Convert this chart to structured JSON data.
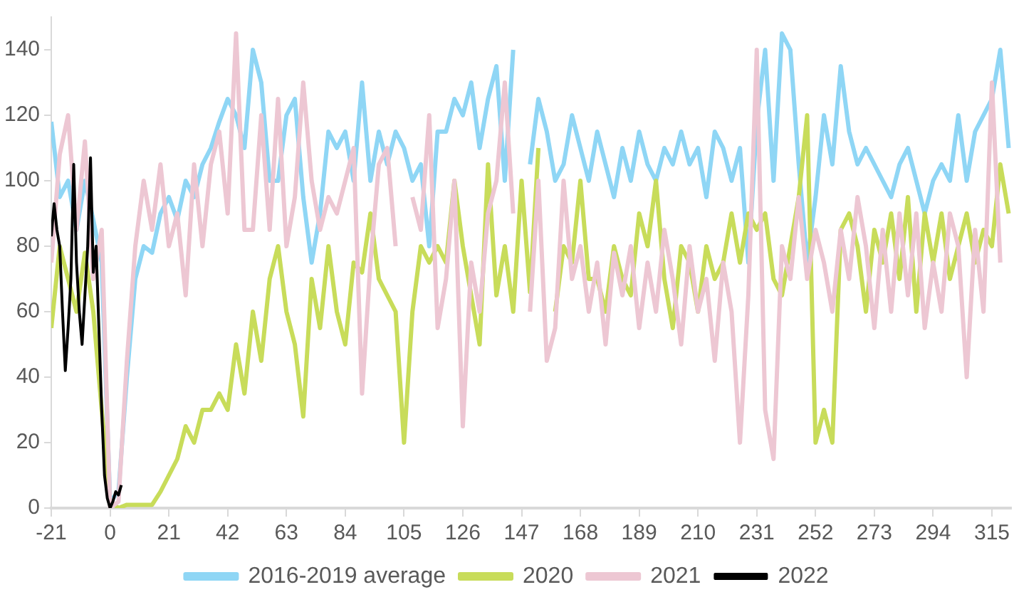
{
  "chart_data": {
    "type": "line",
    "x": [
      -21,
      -18,
      -15,
      -12,
      -9,
      -6,
      -3,
      0,
      3,
      6,
      9,
      12,
      15,
      18,
      21,
      24,
      27,
      30,
      33,
      36,
      39,
      42,
      45,
      48,
      51,
      54,
      57,
      60,
      63,
      66,
      69,
      72,
      75,
      78,
      81,
      84,
      87,
      90,
      93,
      96,
      99,
      102,
      105,
      108,
      111,
      114,
      117,
      120,
      123,
      126,
      129,
      132,
      135,
      138,
      141,
      144,
      147,
      150,
      153,
      156,
      159,
      162,
      165,
      168,
      171,
      174,
      177,
      180,
      183,
      186,
      189,
      192,
      195,
      198,
      201,
      204,
      207,
      210,
      213,
      216,
      219,
      222,
      225,
      228,
      231,
      234,
      237,
      240,
      243,
      246,
      249,
      252,
      255,
      258,
      261,
      264,
      267,
      270,
      273,
      276,
      279,
      282,
      285,
      288,
      291,
      294,
      297,
      300,
      303,
      306,
      309,
      312,
      315,
      318,
      321
    ],
    "series": [
      {
        "name": "2016-2019 average",
        "color": "#8fd6f5",
        "values": [
          118,
          95,
          100,
          85,
          100,
          88,
          75,
          2,
          5,
          40,
          70,
          80,
          78,
          90,
          95,
          88,
          100,
          95,
          105,
          110,
          118,
          125,
          120,
          110,
          140,
          130,
          100,
          100,
          120,
          125,
          95,
          75,
          90,
          115,
          110,
          115,
          100,
          130,
          100,
          115,
          105,
          115,
          110,
          100,
          105,
          80,
          115,
          115,
          125,
          120,
          130,
          110,
          125,
          135,
          100,
          140,
          null,
          105,
          125,
          115,
          100,
          105,
          120,
          110,
          100,
          115,
          105,
          95,
          110,
          100,
          115,
          105,
          100,
          110,
          105,
          115,
          105,
          110,
          95,
          115,
          110,
          100,
          110,
          75,
          118,
          140,
          100,
          145,
          140,
          105,
          75,
          95,
          120,
          105,
          135,
          115,
          105,
          110,
          105,
          100,
          95,
          105,
          110,
          100,
          90,
          100,
          105,
          100,
          120,
          100,
          115,
          120,
          125,
          140,
          110
        ]
      },
      {
        "name": "2020",
        "color": "#c8dc5a",
        "values": [
          55,
          80,
          70,
          60,
          78,
          60,
          30,
          2,
          0,
          1,
          1,
          1,
          1,
          5,
          10,
          15,
          25,
          20,
          30,
          30,
          35,
          30,
          50,
          35,
          60,
          45,
          70,
          80,
          60,
          50,
          28,
          70,
          55,
          80,
          60,
          50,
          75,
          72,
          90,
          70,
          65,
          60,
          20,
          60,
          80,
          75,
          80,
          75,
          100,
          80,
          65,
          50,
          105,
          65,
          80,
          60,
          100,
          66,
          110,
          null,
          60,
          80,
          75,
          100,
          70,
          70,
          60,
          80,
          70,
          65,
          90,
          80,
          100,
          70,
          55,
          80,
          75,
          60,
          80,
          70,
          75,
          90,
          75,
          90,
          85,
          90,
          70,
          65,
          80,
          95,
          120,
          20,
          30,
          20,
          85,
          90,
          80,
          60,
          85,
          75,
          90,
          70,
          95,
          60,
          90,
          75,
          90,
          70,
          80,
          90,
          75,
          85,
          80,
          105,
          90
        ]
      },
      {
        "name": "2021",
        "color": "#edc7d3",
        "values": [
          75,
          108,
          120,
          85,
          112,
          70,
          85,
          0,
          2,
          45,
          80,
          100,
          85,
          105,
          80,
          90,
          65,
          105,
          80,
          105,
          115,
          90,
          145,
          85,
          85,
          120,
          85,
          125,
          80,
          95,
          130,
          100,
          85,
          95,
          90,
          100,
          110,
          35,
          75,
          105,
          110,
          80,
          null,
          95,
          85,
          120,
          55,
          70,
          100,
          25,
          75,
          60,
          90,
          100,
          130,
          90,
          null,
          60,
          100,
          45,
          55,
          100,
          70,
          80,
          60,
          75,
          50,
          78,
          65,
          80,
          55,
          75,
          60,
          85,
          70,
          50,
          80,
          60,
          70,
          45,
          75,
          60,
          20,
          65,
          140,
          30,
          15,
          80,
          70,
          95,
          70,
          85,
          75,
          60,
          85,
          70,
          95,
          80,
          55,
          85,
          60,
          90,
          65,
          90,
          55,
          75,
          60,
          90,
          80,
          40,
          85,
          60,
          130,
          75,
          null
        ]
      },
      {
        "name": "2022",
        "color": "#000000",
        "x": [
          -21,
          -20,
          -19,
          -18,
          -17,
          -16,
          -15,
          -14,
          -13,
          -12,
          -11,
          -10,
          -9,
          -8,
          -7,
          -6,
          -5,
          -4,
          -3,
          -2,
          -1,
          0,
          1,
          2,
          3,
          4
        ],
        "values": [
          83,
          93,
          85,
          80,
          60,
          42,
          55,
          70,
          105,
          75,
          60,
          50,
          65,
          80,
          107,
          72,
          80,
          55,
          30,
          10,
          3,
          0,
          2,
          5,
          4,
          7
        ]
      }
    ],
    "xlim": [
      -21,
      322
    ],
    "ylim": [
      0,
      150
    ],
    "xticks": [
      -21,
      0,
      21,
      42,
      63,
      84,
      105,
      126,
      147,
      168,
      189,
      210,
      231,
      252,
      273,
      294,
      315
    ],
    "yticks": [
      0,
      20,
      40,
      60,
      80,
      100,
      120,
      140
    ],
    "grid": false,
    "legend": "bottom",
    "marker": "none",
    "line_style": "solid"
  }
}
